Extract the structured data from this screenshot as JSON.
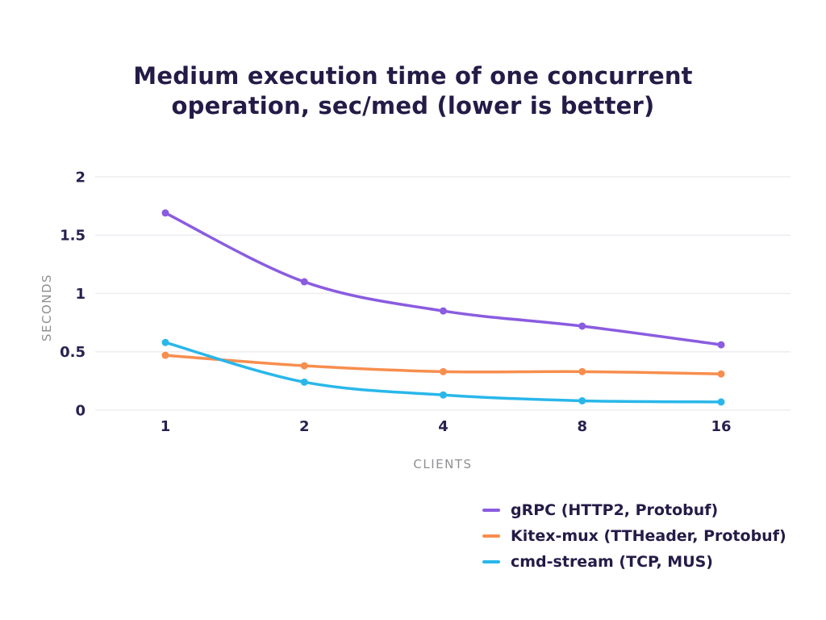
{
  "title": "Medium execution time of one concurrent operation, sec/med (lower is better)",
  "chart_data": {
    "type": "line",
    "x": [
      1,
      2,
      4,
      8,
      16
    ],
    "x_axis_label": "CLIENTS",
    "y_axis_label": "SECONDS",
    "y_ticks": [
      0,
      0.5,
      1,
      1.5,
      2
    ],
    "ylim": [
      0,
      2
    ],
    "grid": true,
    "legend_position": "bottom-right",
    "series": [
      {
        "name": "gRPC (HTTP2, Protobuf)",
        "color": "#8a5ce0",
        "values": [
          1.69,
          1.1,
          0.85,
          0.72,
          0.56
        ]
      },
      {
        "name": "Kitex-mux (TTHeader, Protobuf)",
        "color": "#f78e4e",
        "values": [
          0.47,
          0.38,
          0.33,
          0.33,
          0.31
        ]
      },
      {
        "name": "cmd-stream (TCP, MUS)",
        "color": "#29b7ea",
        "values": [
          0.58,
          0.24,
          0.13,
          0.08,
          0.07
        ]
      }
    ],
    "colors": {
      "title_text": "#251b47",
      "tick_text": "#2a2050",
      "axis_label_text": "#8f8f94",
      "gridline": "#ededf2",
      "background": "#ffffff"
    }
  }
}
